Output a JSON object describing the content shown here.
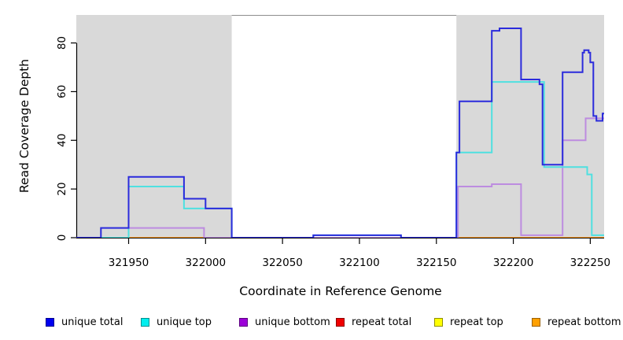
{
  "figure": {
    "type": "read-coverage-plot"
  },
  "chart_data": {
    "type": "line",
    "step": true,
    "title": "",
    "xlabel": "Coordinate in Reference Genome",
    "ylabel": "Read Coverage Depth",
    "xlim": [
      321916,
      322259
    ],
    "ylim": [
      0,
      91.5
    ],
    "x_ticks": [
      321950,
      322000,
      322050,
      322100,
      322150,
      322200,
      322250
    ],
    "y_ticks": [
      0,
      20,
      40,
      60,
      80
    ],
    "grid": false,
    "legend_position": "bottom",
    "background_color": "#ffffff",
    "shade_color": "#d9d9d9",
    "shaded_x_regions": [
      [
        321916,
        322017
      ],
      [
        322163,
        322259
      ]
    ],
    "draw_order": [
      3,
      4,
      5,
      2,
      1,
      0
    ],
    "series": [
      {
        "name": "unique total",
        "line_color": "#2b2bdc",
        "steps": [
          [
            [
              321916,
              0
            ],
            [
              321932,
              4
            ],
            [
              321950,
              25
            ],
            [
              321986,
              16
            ],
            [
              322000,
              12
            ],
            [
              322017,
              0
            ],
            [
              322070,
              1
            ],
            [
              322127,
              0
            ],
            [
              322163,
              35
            ],
            [
              322165,
              56
            ],
            [
              322186,
              85
            ],
            [
              322191,
              86
            ],
            [
              322205,
              65
            ],
            [
              322217,
              63
            ],
            [
              322219,
              30
            ],
            [
              322232,
              68
            ],
            [
              322245,
              76
            ],
            [
              322246,
              77
            ],
            [
              322249,
              76
            ],
            [
              322250,
              72
            ],
            [
              322252,
              50
            ],
            [
              322254,
              48
            ],
            [
              322258,
              51
            ],
            [
              322261,
              51
            ]
          ]
        ]
      },
      {
        "name": "unique top",
        "line_color": "#4fe0e0",
        "steps": [
          [
            [
              321916,
              0
            ],
            [
              321950,
              21
            ],
            [
              321986,
              12
            ],
            [
              322017,
              0
            ],
            [
              322070,
              1
            ],
            [
              322127,
              0
            ],
            [
              322163,
              35
            ],
            [
              322186,
              64
            ],
            [
              322220,
              29
            ],
            [
              322248,
              26
            ],
            [
              322251,
              1
            ],
            [
              322261,
              1
            ]
          ]
        ]
      },
      {
        "name": "unique bottom",
        "line_color": "#bd8ce0",
        "steps": [
          [
            [
              321916,
              0
            ],
            [
              321950,
              4
            ],
            [
              321999,
              0
            ],
            [
              322164,
              21
            ],
            [
              322186,
              22
            ],
            [
              322205,
              1
            ],
            [
              322232,
              40
            ],
            [
              322247,
              49
            ],
            [
              322261,
              49
            ]
          ]
        ]
      },
      {
        "name": "repeat total",
        "line_color": "#e0607a",
        "steps": [
          [
            [
              322000,
              0
            ],
            [
              322261,
              0
            ]
          ]
        ]
      },
      {
        "name": "repeat top",
        "line_color": "#e0d855",
        "steps": [
          [
            [
              321932,
              0
            ],
            [
              321950,
              0
            ]
          ]
        ]
      },
      {
        "name": "repeat bottom",
        "line_color": "#ff9d26",
        "steps": [
          [
            [
              321950,
              0
            ],
            [
              322000,
              0
            ]
          ],
          [
            [
              322164,
              0
            ],
            [
              322261,
              0
            ]
          ]
        ]
      }
    ]
  },
  "legend": {
    "items": [
      {
        "label": "unique total",
        "color": "#0000f0",
        "border": "#000090"
      },
      {
        "label": "unique top",
        "color": "#00eeee",
        "border": "#008f8f"
      },
      {
        "label": "unique bottom",
        "color": "#9c00d8",
        "border": "#5c0080"
      },
      {
        "label": "repeat total",
        "color": "#f00000",
        "border": "#8f0000"
      },
      {
        "label": "repeat top",
        "color": "#ffff00",
        "border": "#8f8f00"
      },
      {
        "label": "repeat bottom",
        "color": "#ffa000",
        "border": "#9c6000"
      }
    ]
  }
}
